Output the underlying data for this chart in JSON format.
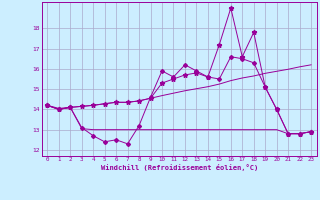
{
  "x": [
    0,
    1,
    2,
    3,
    4,
    5,
    6,
    7,
    8,
    9,
    10,
    11,
    12,
    13,
    14,
    15,
    16,
    17,
    18,
    19,
    20,
    21,
    22,
    23
  ],
  "line_zigzag": [
    14.2,
    14.0,
    14.1,
    13.1,
    12.7,
    12.4,
    12.5,
    12.3,
    13.2,
    14.6,
    15.9,
    15.6,
    16.2,
    15.9,
    15.6,
    15.5,
    16.6,
    16.5,
    16.3,
    15.1,
    14.0,
    12.8,
    12.8,
    12.9
  ],
  "line_upper": [
    14.2,
    14.05,
    14.1,
    14.15,
    14.2,
    14.28,
    14.35,
    14.35,
    14.42,
    14.55,
    14.68,
    14.8,
    14.92,
    15.02,
    15.12,
    15.25,
    15.42,
    15.55,
    15.65,
    15.78,
    15.88,
    15.98,
    16.1,
    16.2
  ],
  "line_lower": [
    14.2,
    14.0,
    14.1,
    13.05,
    13.0,
    13.0,
    13.0,
    13.0,
    13.0,
    13.0,
    13.0,
    13.0,
    13.0,
    13.0,
    13.0,
    13.0,
    13.0,
    13.0,
    13.0,
    13.0,
    13.0,
    12.8,
    12.8,
    12.9
  ],
  "line_spiky": [
    14.2,
    14.0,
    14.1,
    14.15,
    14.2,
    14.28,
    14.35,
    14.35,
    14.42,
    14.55,
    15.3,
    15.5,
    15.7,
    15.8,
    15.6,
    17.2,
    19.0,
    16.6,
    17.8,
    15.1,
    14.0,
    12.8,
    12.8,
    12.9
  ],
  "line_color": "#990099",
  "bg_color": "#cceeff",
  "grid_color": "#aaaacc",
  "xlabel": "Windchill (Refroidissement éolien,°C)",
  "ylim": [
    11.7,
    19.3
  ],
  "xlim": [
    -0.5,
    23.5
  ],
  "yticks": [
    12,
    13,
    14,
    15,
    16,
    17,
    18
  ],
  "xticks": [
    0,
    1,
    2,
    3,
    4,
    5,
    6,
    7,
    8,
    9,
    10,
    11,
    12,
    13,
    14,
    15,
    16,
    17,
    18,
    19,
    20,
    21,
    22,
    23
  ]
}
